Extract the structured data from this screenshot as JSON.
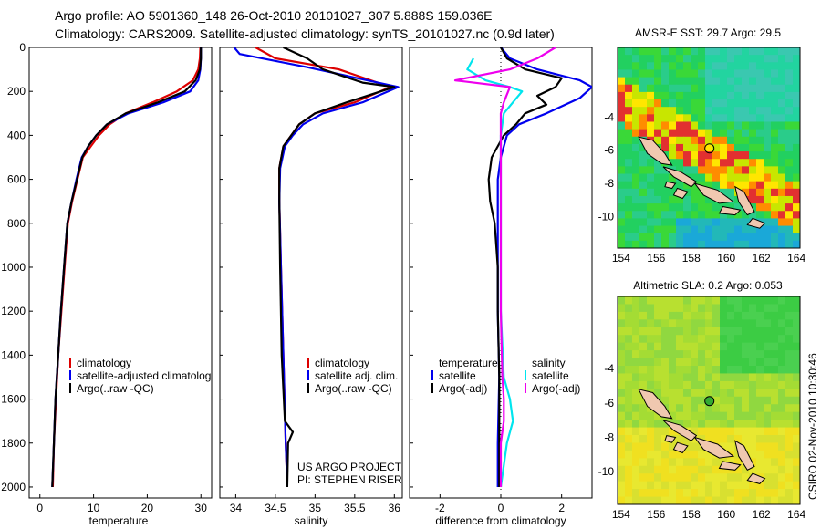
{
  "header": {
    "line1": "Argo profile: AO 5901360_148 26-Oct-2010 20101027_307 5.888S 159.036E",
    "line2": "Climatology: CARS2009. Satellite-adjusted climatology: synTS_20101027.nc (0.9d later)"
  },
  "colors": {
    "climatology": "#dd0000",
    "satellite": "#0000ee",
    "argo": "#000000",
    "salinity_satellite": "#00e5ee",
    "salinity_argo": "#ee00ee"
  },
  "chart_data": [
    {
      "type": "line",
      "panel": "temperature",
      "xlabel": "temperature",
      "ylabel": "",
      "xlim": [
        -2,
        32
      ],
      "ylim": [
        2050,
        0
      ],
      "xticks": [
        "0",
        "10",
        "20",
        "30"
      ],
      "yticks": [
        "0",
        "200",
        "400",
        "600",
        "800",
        "1000",
        "1200",
        "1400",
        "1600",
        "1800",
        "2000"
      ],
      "legend": [
        "climatology",
        "satellite-adjusted climatolog",
        "Argo(..raw -QC)"
      ],
      "series": [
        {
          "name": "climatology",
          "color": "#dd0000",
          "points": [
            [
              29.9,
              0
            ],
            [
              29.8,
              50
            ],
            [
              29.5,
              100
            ],
            [
              28.5,
              150
            ],
            [
              25.5,
              200
            ],
            [
              21,
              250
            ],
            [
              16,
              300
            ],
            [
              13,
              350
            ],
            [
              11,
              400
            ],
            [
              9.5,
              450
            ],
            [
              8,
              500
            ],
            [
              7,
              600
            ],
            [
              6,
              700
            ],
            [
              5.2,
              800
            ],
            [
              4.6,
              1000
            ],
            [
              4,
              1200
            ],
            [
              3.4,
              1400
            ],
            [
              3,
              1600
            ],
            [
              2.6,
              1800
            ],
            [
              2.4,
              2000
            ]
          ]
        },
        {
          "name": "satellite-adjusted climatolog",
          "color": "#0000ee",
          "points": [
            [
              30,
              0
            ],
            [
              30,
              50
            ],
            [
              29.9,
              100
            ],
            [
              29.5,
              150
            ],
            [
              28,
              200
            ],
            [
              23,
              250
            ],
            [
              16.5,
              300
            ],
            [
              12.5,
              350
            ],
            [
              10.5,
              400
            ],
            [
              9,
              450
            ],
            [
              7.8,
              500
            ],
            [
              6.8,
              600
            ],
            [
              5.9,
              700
            ],
            [
              5.1,
              800
            ],
            [
              4.5,
              1000
            ],
            [
              3.9,
              1200
            ],
            [
              3.4,
              1400
            ],
            [
              2.9,
              1600
            ],
            [
              2.6,
              1800
            ],
            [
              2.3,
              2000
            ]
          ]
        },
        {
          "name": "Argo(..raw -QC)",
          "color": "#000000",
          "points": [
            [
              30,
              0
            ],
            [
              30,
              50
            ],
            [
              29.8,
              100
            ],
            [
              29,
              150
            ],
            [
              27,
              200
            ],
            [
              22,
              250
            ],
            [
              16,
              300
            ],
            [
              12.5,
              350
            ],
            [
              10.5,
              400
            ],
            [
              9,
              450
            ],
            [
              7.9,
              500
            ],
            [
              6.9,
              600
            ],
            [
              5.9,
              700
            ],
            [
              5.1,
              800
            ],
            [
              4.5,
              1000
            ],
            [
              3.9,
              1200
            ],
            [
              3.4,
              1400
            ],
            [
              2.9,
              1600
            ],
            [
              2.6,
              1800
            ],
            [
              2.3,
              2000
            ]
          ]
        }
      ]
    },
    {
      "type": "line",
      "panel": "salinity",
      "xlabel": "salinity",
      "ylabel": "",
      "xlim": [
        33.8,
        36.1
      ],
      "ylim": [
        2050,
        0
      ],
      "xticks": [
        "34",
        "34.5",
        "35",
        "35.5",
        "36"
      ],
      "legend": [
        "climatology",
        "satellite adj. clim.",
        "Argo(..raw -QC)"
      ],
      "annotation": [
        "US ARGO PROJECT",
        "PI: STEPHEN RISER"
      ],
      "series": [
        {
          "name": "climatology",
          "color": "#dd0000",
          "points": [
            [
              34.25,
              0
            ],
            [
              34.5,
              50
            ],
            [
              35.3,
              100
            ],
            [
              35.95,
              180
            ],
            [
              35.5,
              250
            ],
            [
              35,
              300
            ],
            [
              34.8,
              350
            ],
            [
              34.7,
              400
            ],
            [
              34.6,
              450
            ],
            [
              34.55,
              550
            ],
            [
              34.55,
              700
            ],
            [
              34.57,
              1000
            ],
            [
              34.6,
              1400
            ],
            [
              34.63,
              1800
            ],
            [
              34.65,
              2000
            ]
          ]
        },
        {
          "name": "satellite adj. clim.",
          "color": "#0000ee",
          "points": [
            [
              33.98,
              0
            ],
            [
              34.05,
              30
            ],
            [
              34.9,
              90
            ],
            [
              36.05,
              180
            ],
            [
              35.6,
              250
            ],
            [
              35.1,
              300
            ],
            [
              34.85,
              350
            ],
            [
              34.72,
              400
            ],
            [
              34.62,
              450
            ],
            [
              34.56,
              550
            ],
            [
              34.55,
              700
            ],
            [
              34.57,
              1000
            ],
            [
              34.6,
              1400
            ],
            [
              34.63,
              1800
            ],
            [
              34.65,
              2000
            ]
          ]
        },
        {
          "name": "Argo(..raw -QC)",
          "color": "#000000",
          "points": [
            [
              34.6,
              0
            ],
            [
              34.9,
              50
            ],
            [
              35.1,
              100
            ],
            [
              35.6,
              160
            ],
            [
              36.0,
              180
            ],
            [
              35.4,
              250
            ],
            [
              35,
              300
            ],
            [
              34.8,
              350
            ],
            [
              34.7,
              400
            ],
            [
              34.6,
              450
            ],
            [
              34.55,
              550
            ],
            [
              34.55,
              700
            ],
            [
              34.56,
              1000
            ],
            [
              34.58,
              1400
            ],
            [
              34.62,
              1700
            ],
            [
              34.72,
              1750
            ],
            [
              34.66,
              1800
            ],
            [
              34.65,
              2000
            ]
          ]
        }
      ]
    },
    {
      "type": "line",
      "panel": "difference",
      "xlabel": "difference from climatology",
      "ylabel": "",
      "xlim": [
        -3,
        3
      ],
      "ylim": [
        2050,
        0
      ],
      "xticks": [
        "-2",
        "0",
        "2"
      ],
      "legend_temperature": [
        "temperature",
        "satellite",
        "Argo(-adj)"
      ],
      "legend_salinity": [
        "salinity",
        "satellite",
        "Argo(-adj)"
      ],
      "series": [
        {
          "name": "temperature satellite",
          "color": "#0000ee",
          "points": [
            [
              0,
              0
            ],
            [
              0.3,
              50
            ],
            [
              1.2,
              100
            ],
            [
              2.6,
              150
            ],
            [
              3,
              180
            ],
            [
              2.6,
              230
            ],
            [
              1.5,
              300
            ],
            [
              0.6,
              350
            ],
            [
              0.2,
              400
            ],
            [
              0,
              500
            ],
            [
              -0.1,
              600
            ],
            [
              -0.1,
              800
            ],
            [
              -0.1,
              1000
            ],
            [
              -0.1,
              1200
            ],
            [
              -0.05,
              1500
            ],
            [
              -0.1,
              1800
            ],
            [
              -0.1,
              2000
            ]
          ]
        },
        {
          "name": "temperature Argo(-adj)",
          "color": "#000000",
          "points": [
            [
              0,
              0
            ],
            [
              0.2,
              50
            ],
            [
              0.8,
              100
            ],
            [
              2,
              140
            ],
            [
              1.8,
              180
            ],
            [
              1.2,
              220
            ],
            [
              1.5,
              260
            ],
            [
              0.8,
              300
            ],
            [
              0.5,
              350
            ],
            [
              0.1,
              400
            ],
            [
              -0.3,
              500
            ],
            [
              -0.4,
              600
            ],
            [
              -0.35,
              700
            ],
            [
              -0.2,
              800
            ],
            [
              -0.1,
              1000
            ],
            [
              -0.1,
              1200
            ],
            [
              -0.05,
              1500
            ],
            [
              -0.05,
              1800
            ],
            [
              -0.05,
              2000
            ]
          ]
        },
        {
          "name": "salinity satellite",
          "color": "#00e5ee",
          "points": [
            [
              -0.9,
              50
            ],
            [
              -1.1,
              100
            ],
            [
              -0.5,
              150
            ],
            [
              0.3,
              180
            ],
            [
              0.7,
              200
            ],
            [
              0.4,
              250
            ],
            [
              0.1,
              300
            ],
            [
              0,
              400
            ],
            [
              0,
              800
            ],
            [
              0,
              1200
            ],
            [
              0.1,
              1500
            ],
            [
              0.3,
              1600
            ],
            [
              0.4,
              1700
            ],
            [
              0.2,
              1800
            ],
            [
              0,
              2000
            ]
          ]
        },
        {
          "name": "salinity Argo(-adj)",
          "color": "#ee00ee",
          "points": [
            [
              1.8,
              0
            ],
            [
              1.2,
              50
            ],
            [
              0.3,
              100
            ],
            [
              -1.5,
              150
            ],
            [
              0.3,
              180
            ],
            [
              0.1,
              250
            ],
            [
              0,
              300
            ],
            [
              0,
              800
            ],
            [
              0,
              1200
            ],
            [
              0.05,
              1500
            ],
            [
              0.1,
              1600
            ],
            [
              0.1,
              1700
            ],
            [
              0,
              1800
            ],
            [
              0,
              2000
            ]
          ]
        }
      ]
    },
    {
      "type": "heatmap",
      "panel": "sst-map",
      "title": "AMSR-E SST: 29.7 Argo: 29.5",
      "xlim": [
        153.8,
        164.2
      ],
      "ylim": [
        -11.9,
        0.2
      ],
      "xticks": [
        "154",
        "156",
        "158",
        "160",
        "162",
        "164"
      ],
      "yticks": [
        "-4",
        "-6",
        "-8",
        "-10"
      ],
      "float_position": {
        "lon": 159.036,
        "lat": -5.888
      }
    },
    {
      "type": "heatmap",
      "panel": "sla-map",
      "title": "Altimetric SLA: 0.2 Argo: 0.053",
      "xlim": [
        153.8,
        164.2
      ],
      "ylim": [
        -11.9,
        0.2
      ],
      "xticks": [
        "154",
        "156",
        "158",
        "160",
        "162",
        "164"
      ],
      "yticks": [
        "-4",
        "-6",
        "-8",
        "-10"
      ],
      "float_position": {
        "lon": 159.036,
        "lat": -5.888
      }
    }
  ],
  "footer": {
    "stamp": "CSIRO 02-Nov-2010 10:30:46"
  }
}
